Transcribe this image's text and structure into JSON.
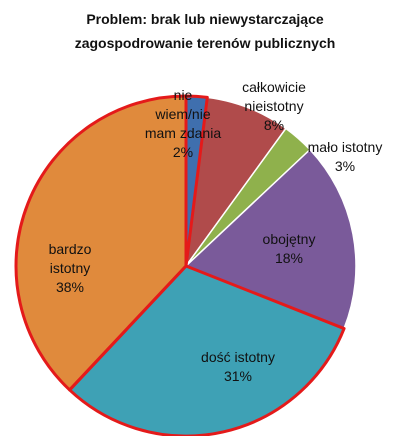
{
  "chart_data": {
    "type": "pie",
    "title": [
      "Problem: brak lub niewystarczające",
      "zagospodrowanie terenów publicznych"
    ],
    "categories": [
      "nie wiem/nie mam zdania",
      "całkowicie nieistotny",
      "mało istotny",
      "obojętny",
      "dość istotny",
      "bardzo istotny"
    ],
    "values": [
      2,
      8,
      3,
      18,
      31,
      38
    ],
    "value_labels": [
      "2%",
      "8%",
      "3%",
      "18%",
      "31%",
      "38%"
    ],
    "colors": [
      "#3f6fae",
      "#b04b4b",
      "#8fb14c",
      "#7a5a9a",
      "#3ea1b5",
      "#e08a3c"
    ],
    "highlighted": [
      0,
      4,
      5
    ],
    "highlight_color": "#e41a1a"
  }
}
